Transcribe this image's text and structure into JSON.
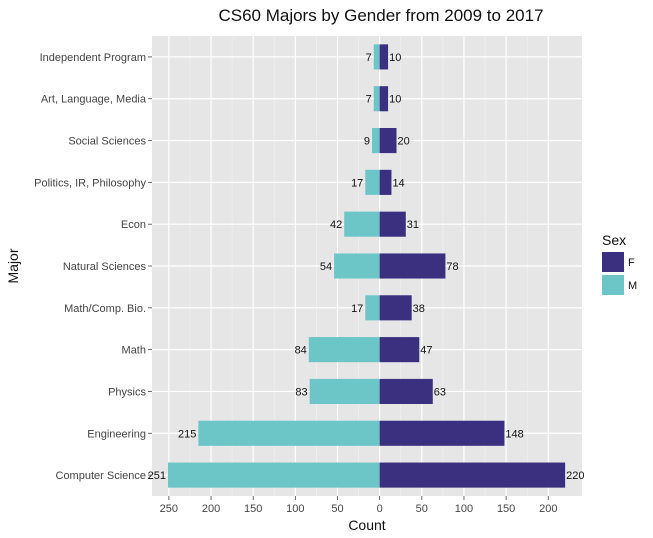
{
  "chart_data": {
    "type": "bar",
    "orientation": "horizontal-diverging",
    "title": "CS60 Majors by Gender from 2009 to 2017",
    "xlabel": "Count",
    "ylabel": "Major",
    "xlim": [
      -270,
      240
    ],
    "x_ticks": [
      -250,
      -200,
      -150,
      -100,
      -50,
      0,
      50,
      100,
      150,
      200
    ],
    "x_tick_labels": [
      "250",
      "200",
      "150",
      "100",
      "50",
      "0",
      "50",
      "100",
      "150",
      "200"
    ],
    "grid": true,
    "legend": {
      "title": "Sex",
      "position": "right"
    },
    "categories": [
      "Independent Program",
      "Art, Language, Media",
      "Social Sciences",
      "Politics, IR, Philosophy",
      "Econ",
      "Natural Sciences",
      "Math/Comp. Bio.",
      "Math",
      "Physics",
      "Engineering",
      "Computer Science"
    ],
    "series": [
      {
        "name": "F",
        "color": "#3b2f80",
        "direction": "positive",
        "values": [
          10,
          10,
          20,
          14,
          31,
          78,
          38,
          47,
          63,
          148,
          220
        ]
      },
      {
        "name": "M",
        "color": "#6cc5c6",
        "direction": "negative",
        "values": [
          7,
          7,
          9,
          17,
          42,
          54,
          17,
          84,
          83,
          215,
          251
        ]
      }
    ]
  }
}
